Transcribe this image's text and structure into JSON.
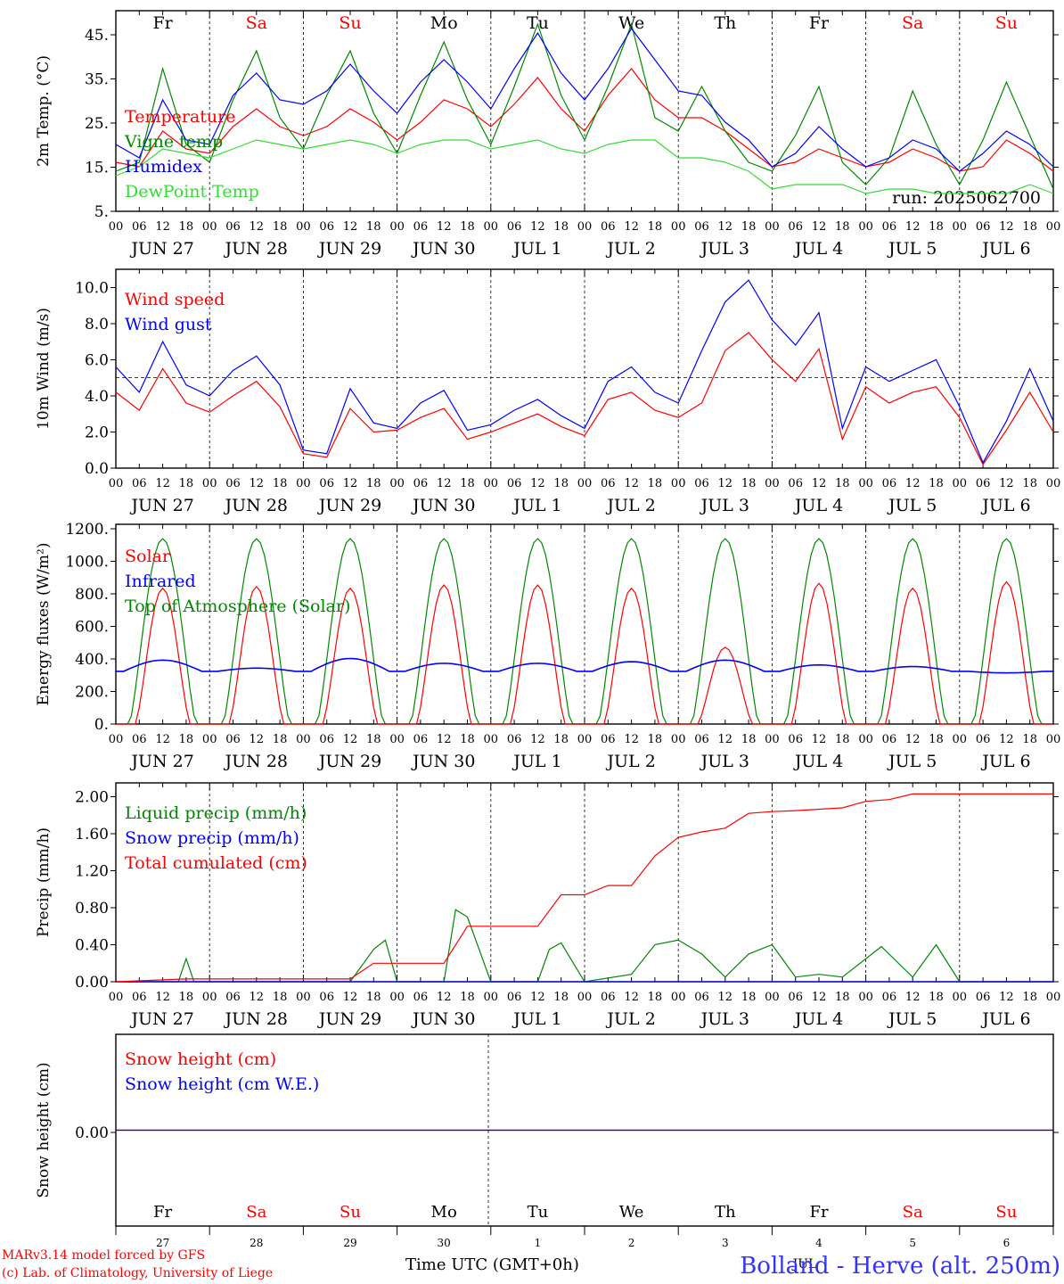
{
  "footer": {
    "model_line": "MARv3.14 model forced by GFS",
    "copyright_line": "(c) Lab. of Climatology, University of Liege",
    "time_axis_label": "Time UTC (GMT+0h)",
    "station": "Bolland - Herve (alt. 250m)",
    "month_label": "JUL"
  },
  "colors": {
    "red": "#ff0000",
    "green": "#008800",
    "blue": "#0000ff",
    "light_green": "#33dd33",
    "weekday_black": "#000000",
    "weekend_red": "#ff0000"
  },
  "axis": {
    "hour_ticks": [
      "00",
      "06",
      "12",
      "18"
    ],
    "end_tick": "00",
    "dates": [
      "JUN 27",
      "JUN 28",
      "JUN 29",
      "JUN 30",
      "JUL  1",
      "JUL  2",
      "JUL  3",
      "JUL  4",
      "JUL  5",
      "JUL  6"
    ],
    "weekdays": [
      "Fr",
      "Sa",
      "Su",
      "Mo",
      "Tu",
      "We",
      "Th",
      "Fr",
      "Sa",
      "Su"
    ],
    "weekend": [
      false,
      true,
      true,
      false,
      false,
      false,
      false,
      false,
      true,
      true
    ],
    "bottom_day_numbers": [
      "27",
      "28",
      "29",
      "30",
      "1",
      "2",
      "3",
      "4",
      "5",
      "6"
    ]
  },
  "chart_data": [
    {
      "type": "line",
      "title": "",
      "ylabel": "2m Temp. (°C)",
      "ylim": [
        5,
        50
      ],
      "yticks": [
        "5.",
        "15.",
        "25.",
        "35.",
        "45."
      ],
      "annotation": "run: 2025062700",
      "x_unit": "hours since 2025-06-27 00 UTC",
      "series": [
        {
          "name": "Temperature",
          "color": "red",
          "x": [
            0,
            6,
            12,
            18,
            24,
            30,
            36,
            42,
            48,
            54,
            60,
            66,
            72,
            78,
            84,
            90,
            96,
            102,
            108,
            114,
            120,
            126,
            132,
            138,
            144,
            150,
            156,
            162,
            168,
            174,
            180,
            186,
            192,
            198,
            204,
            210,
            216,
            222,
            228,
            234,
            240
          ],
          "y": [
            16,
            15,
            23,
            19,
            18,
            24,
            28,
            24,
            22,
            24,
            28,
            25,
            21,
            25,
            30,
            28,
            24,
            29,
            35,
            28,
            23,
            31,
            37,
            30,
            26,
            26,
            23,
            19,
            15,
            16,
            19,
            17,
            15,
            16,
            19,
            17,
            14,
            15,
            21,
            18,
            14
          ]
        },
        {
          "name": "Vigne temp",
          "color": "green",
          "x": [
            0,
            6,
            12,
            18,
            24,
            30,
            36,
            42,
            48,
            54,
            60,
            66,
            72,
            78,
            84,
            90,
            96,
            102,
            108,
            114,
            120,
            126,
            132,
            138,
            144,
            150,
            156,
            162,
            168,
            174,
            180,
            186,
            192,
            198,
            204,
            210,
            216,
            222,
            228,
            234,
            240
          ],
          "y": [
            14,
            16,
            37,
            20,
            16,
            30,
            41,
            26,
            19,
            31,
            41,
            27,
            18,
            31,
            43,
            30,
            20,
            33,
            47,
            31,
            21,
            33,
            47,
            26,
            23,
            33,
            23,
            16,
            14,
            22,
            33,
            16,
            11,
            17,
            32,
            20,
            11,
            21,
            34,
            22,
            10
          ]
        },
        {
          "name": "Humidex",
          "color": "blue",
          "x": [
            0,
            6,
            12,
            18,
            24,
            30,
            36,
            42,
            48,
            54,
            60,
            66,
            72,
            78,
            84,
            90,
            96,
            102,
            108,
            114,
            120,
            126,
            132,
            138,
            144,
            150,
            156,
            162,
            168,
            174,
            180,
            186,
            192,
            198,
            204,
            210,
            216,
            222,
            228,
            234,
            240
          ],
          "y": [
            20,
            17,
            30,
            21,
            20,
            31,
            36,
            30,
            29,
            32,
            38,
            32,
            27,
            34,
            39,
            34,
            28,
            37,
            45,
            36,
            30,
            37,
            46,
            39,
            32,
            31,
            25,
            21,
            15,
            18,
            24,
            19,
            15,
            17,
            21,
            19,
            14,
            18,
            23,
            20,
            15
          ]
        },
        {
          "name": "DewPoint Temp",
          "color": "light_green",
          "x": [
            0,
            6,
            12,
            18,
            24,
            30,
            36,
            42,
            48,
            54,
            60,
            66,
            72,
            78,
            84,
            90,
            96,
            102,
            108,
            114,
            120,
            126,
            132,
            138,
            144,
            150,
            156,
            162,
            168,
            174,
            180,
            186,
            192,
            198,
            204,
            210,
            216,
            222,
            228,
            234,
            240
          ],
          "y": [
            13,
            15,
            19,
            18,
            17,
            19,
            21,
            20,
            19,
            20,
            21,
            20,
            18,
            20,
            21,
            21,
            19,
            20,
            21,
            19,
            18,
            20,
            21,
            21,
            17,
            17,
            16,
            14,
            10,
            11,
            11,
            11,
            9,
            10,
            10,
            9,
            9,
            9,
            9,
            11,
            9
          ]
        }
      ]
    },
    {
      "type": "line",
      "title": "",
      "ylabel": "10m Wind (m/s)",
      "ylim": [
        0,
        11
      ],
      "yticks": [
        "0.0",
        "2.0",
        "4.0",
        "6.0",
        "8.0",
        "10.0"
      ],
      "reference_line": 5,
      "x_unit": "hours since 2025-06-27 00 UTC",
      "series": [
        {
          "name": "Wind speed",
          "color": "red",
          "x": [
            0,
            6,
            12,
            18,
            24,
            30,
            36,
            42,
            48,
            54,
            60,
            66,
            72,
            78,
            84,
            90,
            96,
            102,
            108,
            114,
            120,
            126,
            132,
            138,
            144,
            150,
            156,
            162,
            168,
            174,
            180,
            186,
            192,
            198,
            204,
            210,
            216,
            222,
            228,
            234,
            240
          ],
          "y": [
            4.2,
            3.2,
            5.5,
            3.6,
            3.1,
            4.0,
            4.8,
            3.4,
            0.8,
            0.6,
            3.3,
            2.0,
            2.1,
            2.8,
            3.3,
            1.6,
            2.0,
            2.5,
            3.0,
            2.3,
            1.8,
            3.8,
            4.2,
            3.2,
            2.8,
            3.6,
            6.5,
            7.5,
            6.0,
            4.8,
            6.6,
            1.6,
            4.5,
            3.6,
            4.2,
            4.5,
            2.8,
            0.2,
            2.1,
            4.2,
            2.0
          ]
        },
        {
          "name": "Wind gust",
          "color": "blue",
          "x": [
            0,
            6,
            12,
            18,
            24,
            30,
            36,
            42,
            48,
            54,
            60,
            66,
            72,
            78,
            84,
            90,
            96,
            102,
            108,
            114,
            120,
            126,
            132,
            138,
            144,
            150,
            156,
            162,
            168,
            174,
            180,
            186,
            192,
            198,
            204,
            210,
            216,
            222,
            228,
            234,
            240
          ],
          "y": [
            5.6,
            4.2,
            7.0,
            4.6,
            4.0,
            5.4,
            6.2,
            4.6,
            1.0,
            0.8,
            4.4,
            2.5,
            2.2,
            3.6,
            4.3,
            2.1,
            2.4,
            3.2,
            3.8,
            2.9,
            2.2,
            4.8,
            5.6,
            4.2,
            3.6,
            6.5,
            9.2,
            10.4,
            8.2,
            6.8,
            8.6,
            2.2,
            5.6,
            4.8,
            5.4,
            6.0,
            3.4,
            0.3,
            2.6,
            5.5,
            2.6
          ]
        }
      ]
    },
    {
      "type": "line",
      "title": "",
      "ylabel": "Energy fluxes (W/m²)",
      "ylim": [
        0,
        1250
      ],
      "yticks": [
        "0.",
        "200.",
        "400.",
        "600.",
        "800.",
        "1000.",
        "1200."
      ],
      "x_unit": "hours since 2025-06-27 00 UTC",
      "daily_peaks": {
        "solar": [
          850,
          860,
          850,
          870,
          870,
          850,
          480,
          880,
          850,
          890
        ],
        "top_of_atmosphere": [
          1160,
          1160,
          1160,
          1160,
          1160,
          1160,
          1160,
          1160,
          1160,
          1160
        ],
        "infrared": [
          400,
          350,
          410,
          380,
          380,
          390,
          400,
          370,
          360,
          320
        ]
      },
      "series": [
        {
          "name": "Solar",
          "color": "red"
        },
        {
          "name": "Infrared",
          "color": "blue"
        },
        {
          "name": "Top of Atmosphere (Solar)",
          "color": "green"
        }
      ]
    },
    {
      "type": "line",
      "title": "",
      "ylabel": "Precip (mm/h)",
      "ylim": [
        0,
        2.15
      ],
      "yticks": [
        "0.00",
        "0.40",
        "0.80",
        "1.20",
        "1.60",
        "2.00"
      ],
      "x_unit": "hours since 2025-06-27 00 UTC",
      "series": [
        {
          "name": "Liquid precip (mm/h)",
          "color": "green",
          "x": [
            0,
            16,
            18,
            20,
            24,
            60,
            66,
            69,
            72,
            84,
            87,
            90,
            96,
            108,
            111,
            114,
            120,
            132,
            138,
            144,
            150,
            156,
            162,
            168,
            174,
            180,
            186,
            196,
            204,
            210,
            216,
            240
          ],
          "y": [
            0,
            0,
            0.25,
            0,
            0,
            0,
            0.35,
            0.45,
            0,
            0,
            0.78,
            0.7,
            0,
            0,
            0.35,
            0.42,
            0,
            0.08,
            0.4,
            0.45,
            0.3,
            0.05,
            0.3,
            0.4,
            0.05,
            0.08,
            0.05,
            0.38,
            0.05,
            0.4,
            0,
            0
          ]
        },
        {
          "name": "Snow precip (mm/h)",
          "color": "blue",
          "x": [
            0,
            240
          ],
          "y": [
            0,
            0
          ]
        },
        {
          "name": "Total cumulated (cm)",
          "color": "red",
          "x": [
            0,
            18,
            60,
            66,
            84,
            90,
            108,
            114,
            120,
            126,
            132,
            138,
            144,
            150,
            156,
            162,
            168,
            174,
            186,
            192,
            198,
            204,
            240
          ],
          "y": [
            0,
            0.03,
            0.03,
            0.2,
            0.2,
            0.6,
            0.6,
            0.94,
            0.94,
            1.04,
            1.04,
            1.36,
            1.56,
            1.62,
            1.66,
            1.82,
            1.84,
            1.85,
            1.88,
            1.95,
            1.97,
            2.03,
            2.03
          ]
        }
      ]
    },
    {
      "type": "line",
      "title": "",
      "ylabel": "Snow height (cm)",
      "ylim": [
        -1,
        1
      ],
      "yticks": [
        "0.00"
      ],
      "x_unit": "hours since 2025-06-27 00 UTC",
      "series": [
        {
          "name": "Snow height (cm)",
          "color": "red",
          "x": [
            0,
            240
          ],
          "y": [
            0,
            0
          ]
        },
        {
          "name": "Snow height (cm W.E.)",
          "color": "blue",
          "x": [
            0,
            240
          ],
          "y": [
            0,
            0
          ]
        }
      ]
    }
  ]
}
